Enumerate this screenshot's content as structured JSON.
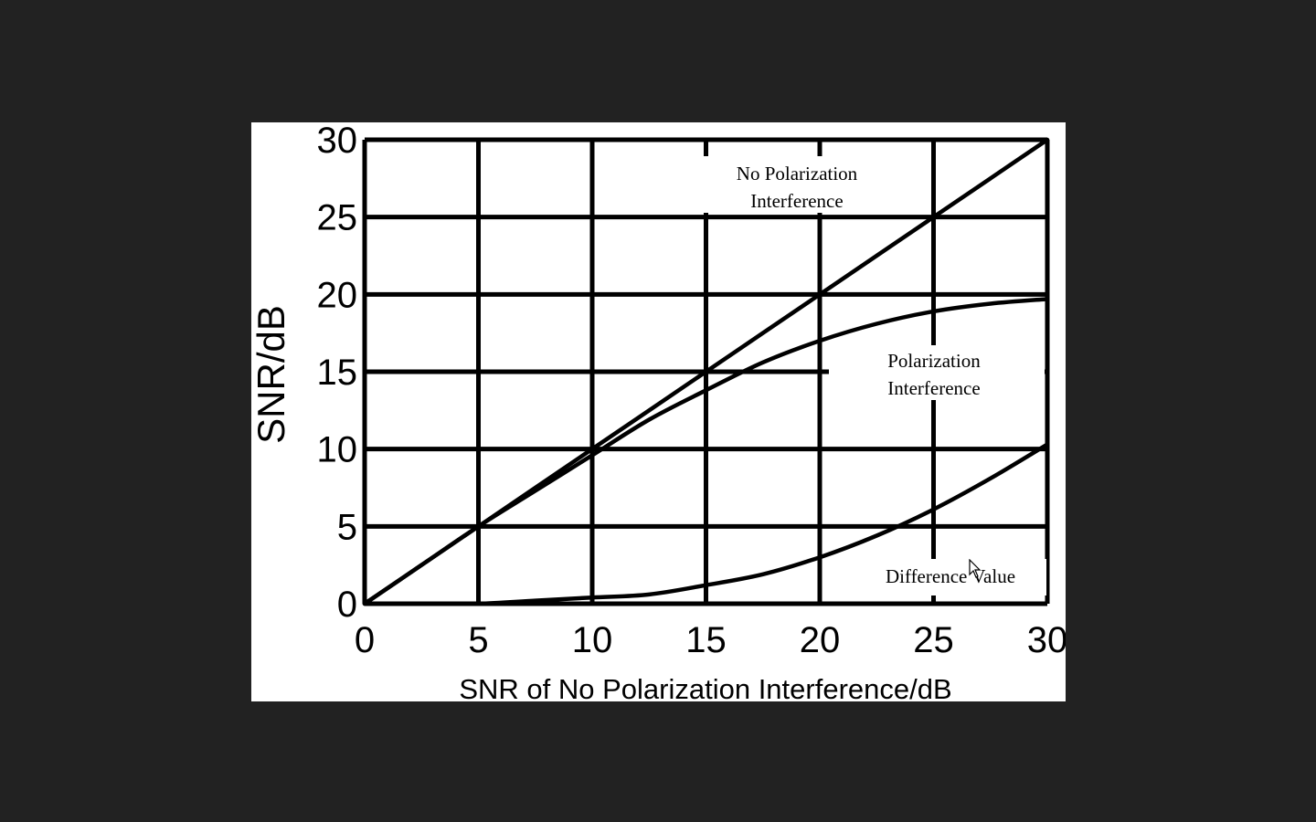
{
  "colors": {
    "backdrop": "#222222",
    "panel": "#ffffff",
    "ink": "#000000"
  },
  "cursor_icon": "pointer-arrow-icon",
  "chart_data": {
    "type": "line",
    "title": "",
    "xlabel": "SNR of No Polarization Interference/dB",
    "ylabel": "SNR/dB",
    "xlim": [
      0,
      30
    ],
    "ylim": [
      0,
      30
    ],
    "xticks": [
      "0",
      "5",
      "10",
      "15",
      "20",
      "25",
      "30"
    ],
    "yticks": [
      "0",
      "5",
      "10",
      "15",
      "20",
      "25",
      "30"
    ],
    "grid": true,
    "legend": "none",
    "x": [
      0,
      2.5,
      5,
      7.5,
      10,
      12.5,
      15,
      17.5,
      20,
      22.5,
      25,
      27.5,
      30
    ],
    "series": [
      {
        "name": "No Polarization Interference",
        "values": [
          0,
          2.5,
          5,
          7.5,
          10,
          12.5,
          15,
          17.5,
          20,
          22.5,
          25,
          27.5,
          30
        ]
      },
      {
        "name": "Polarization Interference",
        "values": [
          0,
          2.5,
          5,
          7.3,
          9.6,
          11.9,
          13.8,
          15.6,
          17.0,
          18.1,
          18.9,
          19.4,
          19.7
        ]
      },
      {
        "name": "Difference Value",
        "values": [
          0,
          0,
          0,
          0.2,
          0.4,
          0.6,
          1.2,
          1.9,
          3.0,
          4.4,
          6.1,
          8.1,
          10.3
        ]
      }
    ],
    "annotations": [
      {
        "id": "no-pol",
        "lines": [
          "No Polarization",
          "Interference"
        ]
      },
      {
        "id": "pol",
        "lines": [
          "Polarization",
          "Interference"
        ]
      },
      {
        "id": "diff",
        "lines": [
          "Difference Value"
        ]
      }
    ]
  }
}
